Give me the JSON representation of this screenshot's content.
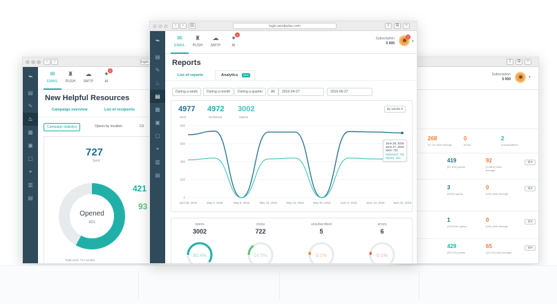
{
  "url": "login.sendpulse.com",
  "topnav": [
    {
      "label": "EMAIL",
      "icon": "envelope-icon"
    },
    {
      "label": "PUSH",
      "icon": "bell-icon"
    },
    {
      "label": "SMTP",
      "icon": "cloud-icon"
    },
    {
      "label": "AI",
      "icon": "chat-icon",
      "badge": "2"
    }
  ],
  "subscription": {
    "label": "Subscription",
    "value": "5 000"
  },
  "avatar_badge": "2",
  "left_window": {
    "title": "New Helpful Resources",
    "tabs": [
      "Campaign overview",
      "List of recipients"
    ],
    "chips": [
      "Campaign statistics",
      "Opens by location",
      "Cli"
    ],
    "sent_value": "727",
    "sent_label": "Sent",
    "donut": {
      "title": "Opened",
      "value": "421",
      "fraction": 0.58
    },
    "side_values": [
      "421",
      "93"
    ],
    "footer": "Total sent: 727 emails"
  },
  "center_window": {
    "title": "Reports",
    "tabs": [
      "List of reports",
      "Analytics"
    ],
    "new_badge": "New",
    "filters": [
      "During a week",
      "During a month",
      "During a quarter",
      "All"
    ],
    "date_from": "2016-04-27",
    "date_to": "2016-06-27",
    "stats": [
      {
        "value": "4977",
        "label": "Sent"
      },
      {
        "value": "4972",
        "label": "Delivered"
      },
      {
        "value": "3002",
        "label": "Opens"
      }
    ],
    "group_by": "By weeks",
    "tooltip": [
      "June 28, 2016",
      "June 27, 2016",
      "Sent: 721",
      "Delivered: 721",
      "Opens: 421"
    ],
    "bottom_cards": [
      {
        "label": "opens",
        "value": "3002",
        "pct": "60.4%",
        "color": "#21b0a8",
        "fraction": 0.6
      },
      {
        "label": "clicks",
        "value": "722",
        "pct": "14.5%",
        "color": "#5cc37a",
        "fraction": 0.145
      },
      {
        "label": "unsubscribed",
        "value": "5",
        "pct": "0.1%",
        "color": "#ee7b3d",
        "fraction": 0.02
      },
      {
        "label": "errors",
        "value": "6",
        "pct": "0.1%",
        "color": "#e8584a",
        "fraction": 0.02
      }
    ]
  },
  "chart_data": {
    "type": "line",
    "x": [
      "April 28, 2016",
      "May 5, 2016",
      "May 9, 2016",
      "May 16, 2016",
      "May 23, 2016",
      "May 30, 2016",
      "June 6, 2016",
      "June 13, 2016",
      "June 20, 2016"
    ],
    "ylim": [
      0,
      800
    ],
    "yticks": [
      "0",
      "200",
      "400",
      "600",
      "800"
    ],
    "series": [
      {
        "name": "Sent",
        "color": "#1f6e8c",
        "values": [
          700,
          740,
          0,
          730,
          730,
          0,
          735,
          730,
          720
        ]
      },
      {
        "name": "Opens",
        "color": "#46c3bb",
        "values": [
          420,
          440,
          0,
          430,
          440,
          0,
          440,
          430,
          425
        ]
      }
    ]
  },
  "right_window": {
    "subscription": {
      "label": "Subscription",
      "value": "5 000"
    },
    "top_stats": [
      {
        "value": "268",
        "sub": "57.1% click through",
        "color": "orange"
      },
      {
        "value": "0",
        "sub": "errors",
        "color": "orange"
      },
      {
        "value": "2",
        "sub": "unsubscribed",
        "color": "teal"
      }
    ],
    "rows": [
      {
        "a": "419",
        "a_sub": "(57.6%) opens",
        "b": "92",
        "b_sub": "(0.98%) click through"
      },
      {
        "a": "3",
        "a_sub": "(60%) opens",
        "b": "0",
        "b_sub": "(0%) click through"
      },
      {
        "a": "1",
        "a_sub": "(100.0%) opens",
        "b": "0",
        "b_sub": "(0%) click through"
      },
      {
        "a": "429",
        "a_sub": "(59.2%) opens",
        "b": "65",
        "b_sub": "(15.1%) click through"
      }
    ]
  }
}
